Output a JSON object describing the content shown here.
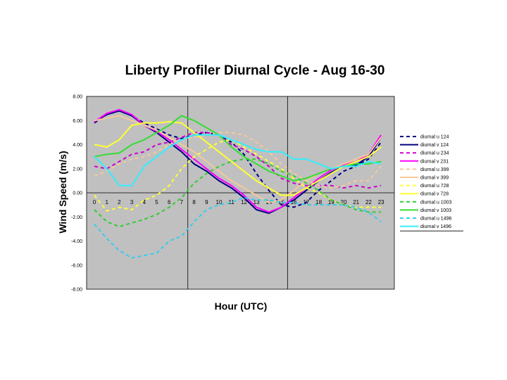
{
  "chart_data": {
    "type": "line",
    "title": "Liberty Profiler Diurnal Cycle - Aug 16-30",
    "xlabel": "Hour (UTC)",
    "ylabel": "Wind Speed (m/s)",
    "x": [
      0,
      1,
      2,
      3,
      4,
      5,
      6,
      7,
      8,
      9,
      10,
      11,
      12,
      13,
      14,
      15,
      16,
      17,
      18,
      19,
      20,
      21,
      22,
      23
    ],
    "x_tick_labels": [
      "0",
      "1",
      "2",
      "3",
      "4",
      "5",
      "6",
      "7",
      "8",
      "9",
      "10",
      "11",
      "12",
      "13",
      "14",
      "15",
      "16",
      "17",
      "18",
      "19",
      "20",
      "21",
      "22",
      "23"
    ],
    "ylim": [
      -8,
      8
    ],
    "y_tick_labels": [
      "8.00",
      "6.00",
      "4.00",
      "2.00",
      "0.00",
      "-2.00",
      "-4.00",
      "-6.00",
      "-8.00"
    ],
    "plot_background": "#c0c0c0",
    "vertical_gridlines_at": [
      8,
      16
    ],
    "legend_position": "right",
    "series": [
      {
        "name": "diurnal u 124",
        "color": "#000080",
        "dashed": true,
        "values": [
          5.8,
          6.5,
          6.8,
          6.4,
          5.8,
          5.3,
          4.8,
          4.5,
          4.8,
          5.0,
          4.8,
          4.2,
          3.2,
          1.6,
          0.2,
          -1.0,
          -1.2,
          -0.8,
          0.2,
          1.0,
          1.8,
          2.2,
          2.8,
          4.2
        ]
      },
      {
        "name": "diurnal v 124",
        "color": "#000080",
        "dashed": false,
        "values": [
          5.9,
          6.5,
          6.8,
          6.4,
          5.6,
          5.0,
          4.2,
          3.4,
          2.4,
          1.8,
          1.0,
          0.4,
          -0.4,
          -1.4,
          -1.7,
          -1.2,
          -0.6,
          0.2,
          1.0,
          1.7,
          2.2,
          2.3,
          3.0,
          4.6
        ]
      },
      {
        "name": "diurnal u 234",
        "color": "#cc00cc",
        "dashed": true,
        "values": [
          2.2,
          2.0,
          2.6,
          3.2,
          3.4,
          4.0,
          4.2,
          4.6,
          5.0,
          5.0,
          4.8,
          4.0,
          3.6,
          3.0,
          2.2,
          1.2,
          0.8,
          0.6,
          0.6,
          0.6,
          0.4,
          0.6,
          0.4,
          0.6
        ]
      },
      {
        "name": "diurnal v 231",
        "color": "#ff00ff",
        "dashed": false,
        "values": [
          5.9,
          6.6,
          6.9,
          6.5,
          5.6,
          5.1,
          4.4,
          3.6,
          2.8,
          2.0,
          1.2,
          0.6,
          -0.2,
          -1.2,
          -1.6,
          -1.2,
          -0.4,
          0.4,
          1.2,
          1.9,
          2.3,
          2.6,
          3.2,
          4.8
        ]
      },
      {
        "name": "diurnal u 399",
        "color": "#f5c99a",
        "dashed": true,
        "values": [
          1.4,
          1.8,
          2.4,
          2.8,
          3.0,
          3.4,
          4.0,
          4.4,
          4.6,
          4.8,
          5.0,
          5.0,
          4.8,
          4.2,
          3.4,
          2.4,
          1.6,
          1.0,
          0.6,
          0.4,
          0.6,
          1.0,
          1.0,
          2.2
        ]
      },
      {
        "name": "diurnal v 399",
        "color": "#f5c99a",
        "dashed": false,
        "values": [
          6.0,
          6.2,
          6.4,
          6.0,
          5.6,
          5.2,
          4.6,
          4.0,
          3.4,
          2.6,
          1.8,
          1.0,
          0.4,
          -0.2,
          -0.8,
          -0.6,
          0.2,
          1.0,
          1.6,
          2.0,
          2.4,
          2.8,
          3.2,
          4.6
        ]
      },
      {
        "name": "diurnal u 728",
        "color": "#ffff33",
        "dashed": true,
        "values": [
          -0.2,
          -1.5,
          -1.2,
          -1.4,
          -0.6,
          -0.2,
          0.6,
          2.0,
          3.0,
          3.6,
          4.2,
          4.4,
          3.8,
          3.2,
          2.6,
          2.0,
          1.2,
          0.4,
          0.0,
          -0.6,
          -1.0,
          -1.2,
          -1.2,
          -1.2
        ]
      },
      {
        "name": "diurnal v 728",
        "color": "#ffff33",
        "dashed": false,
        "values": [
          4.0,
          3.8,
          4.4,
          5.6,
          5.8,
          5.8,
          5.9,
          5.8,
          5.0,
          4.2,
          3.4,
          2.6,
          1.8,
          1.0,
          0.4,
          -0.2,
          -0.2,
          0.4,
          1.0,
          1.6,
          2.2,
          2.6,
          3.0,
          3.8
        ]
      },
      {
        "name": "diurnal u 1003",
        "color": "#33cc33",
        "dashed": true,
        "values": [
          -1.4,
          -2.4,
          -2.8,
          -2.5,
          -2.2,
          -1.8,
          -1.2,
          -0.4,
          0.8,
          1.6,
          2.2,
          2.6,
          2.8,
          2.8,
          2.4,
          1.8,
          1.4,
          0.8,
          0.2,
          -0.6,
          -1.0,
          -1.4,
          -1.6,
          -1.6
        ]
      },
      {
        "name": "diurnal v 1003",
        "color": "#33dd33",
        "dashed": false,
        "values": [
          3.0,
          3.2,
          3.3,
          4.0,
          4.4,
          5.0,
          5.6,
          6.4,
          6.0,
          5.4,
          4.8,
          3.8,
          3.0,
          2.4,
          1.8,
          1.4,
          1.0,
          1.2,
          1.6,
          2.0,
          2.2,
          2.4,
          2.4,
          2.6
        ]
      },
      {
        "name": "diurnal u 1496",
        "color": "#33ccee",
        "dashed": true,
        "values": [
          -2.6,
          -3.8,
          -4.8,
          -5.4,
          -5.2,
          -5.0,
          -4.0,
          -3.6,
          -2.4,
          -1.4,
          -1.0,
          -0.8,
          -0.4,
          -0.6,
          -0.6,
          -0.8,
          -0.8,
          -1.0,
          -1.0,
          -1.0,
          -1.0,
          -1.2,
          -1.6,
          -2.4
        ]
      },
      {
        "name": "diurnal v 1496",
        "color": "#33eeff",
        "dashed": false,
        "values": [
          3.0,
          2.0,
          0.6,
          0.6,
          2.2,
          3.0,
          3.8,
          4.4,
          4.8,
          4.8,
          4.8,
          4.4,
          4.0,
          3.6,
          3.4,
          3.4,
          2.8,
          2.8,
          2.4,
          2.0,
          2.2,
          2.2,
          2.6,
          2.4
        ]
      }
    ]
  }
}
